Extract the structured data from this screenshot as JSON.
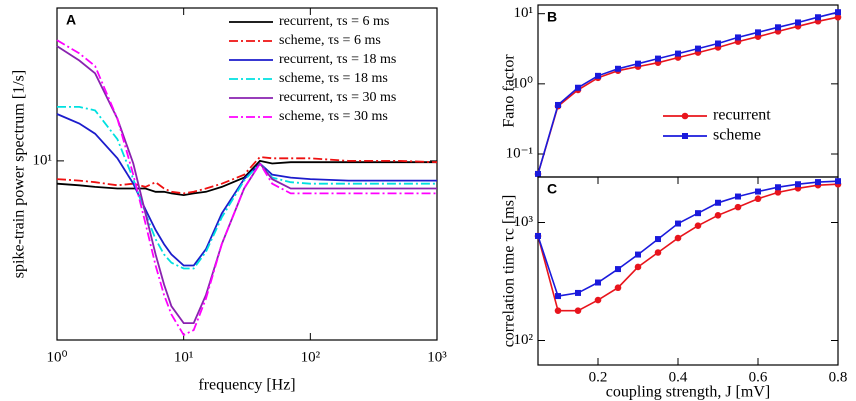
{
  "chart_data": [
    {
      "type": "line",
      "panel": "A",
      "xscale": "log",
      "yscale": "log",
      "xlabel": "frequency [Hz]",
      "ylabel": "spike-train power spectrum [1/s]",
      "x": [
        1,
        1.5,
        2,
        3,
        4,
        5,
        6,
        7,
        8,
        10,
        12,
        15,
        20,
        30,
        40,
        50,
        70,
        100,
        200,
        500,
        1000
      ],
      "xlim": [
        1,
        1000
      ],
      "xticks": [
        {
          "value": 1,
          "label": "10⁰"
        },
        {
          "value": 10,
          "label": "10¹"
        },
        {
          "value": 100,
          "label": "10²"
        },
        {
          "value": 1000,
          "label": "10³"
        }
      ],
      "ylim": [
        2.55,
        32.1
      ],
      "yticks": [
        {
          "value": 10,
          "label": "10¹"
        }
      ],
      "legend": "upper right",
      "series": [
        {
          "name": "recurrent, τs = 6 ms",
          "color": "#000000",
          "dash": false,
          "values": [
            8.4,
            8.3,
            8.2,
            8.1,
            8.1,
            8.1,
            7.9,
            7.9,
            7.8,
            7.7,
            7.8,
            7.9,
            8.2,
            8.8,
            10,
            9.8,
            9.9,
            9.9,
            9.9,
            9.9,
            9.9
          ]
        },
        {
          "name": "scheme, τs = 6 ms",
          "color": "#ee1111",
          "dash": true,
          "values": [
            8.7,
            8.6,
            8.5,
            8.3,
            8.4,
            8.2,
            8.5,
            8.1,
            7.9,
            7.8,
            7.9,
            8.1,
            8.4,
            9.0,
            10.3,
            10.2,
            10.2,
            10.2,
            10,
            10,
            9.9
          ]
        },
        {
          "name": "recurrent, τs = 18 ms",
          "color": "#1c1ccc",
          "dash": false,
          "values": [
            14.3,
            13.3,
            12.3,
            10.2,
            8.4,
            6.9,
            5.9,
            5.3,
            4.9,
            4.5,
            4.5,
            5.1,
            6.7,
            8.7,
            9.8,
            9.0,
            8.8,
            8.7,
            8.6,
            8.6,
            8.6
          ]
        },
        {
          "name": "scheme, τs = 18 ms",
          "color": "#00e0e0",
          "dash": true,
          "values": [
            15.1,
            15.1,
            14.7,
            11.8,
            8.7,
            6.7,
            5.5,
            4.9,
            4.6,
            4.4,
            4.4,
            5.0,
            6.5,
            8.6,
            9.8,
            8.8,
            8.5,
            8.4,
            8.4,
            8.4,
            8.4
          ]
        },
        {
          "name": "recurrent, τs = 30 ms",
          "color": "#8a22b0",
          "dash": false,
          "values": [
            24.0,
            21.5,
            19.5,
            13.8,
            9.8,
            6.7,
            4.9,
            3.9,
            3.3,
            2.9,
            2.9,
            3.6,
            5.3,
            8.1,
            9.8,
            8.7,
            8.1,
            8.1,
            8.1,
            8.1,
            8.1
          ]
        },
        {
          "name": "scheme, τs = 30 ms",
          "color": "#ff00ff",
          "dash": true,
          "values": [
            25.1,
            22.7,
            20.6,
            13.8,
            9.0,
            6.2,
            4.5,
            3.6,
            3.1,
            2.65,
            2.75,
            3.5,
            5.3,
            8.1,
            9.8,
            8.4,
            7.8,
            7.8,
            7.8,
            7.8,
            7.8
          ]
        }
      ]
    },
    {
      "type": "line",
      "panel": "B",
      "xscale": "linear",
      "yscale": "log",
      "ylabel": "Fano factor",
      "x": [
        0.05,
        0.1,
        0.15,
        0.2,
        0.25,
        0.3,
        0.35,
        0.4,
        0.45,
        0.5,
        0.55,
        0.6,
        0.65,
        0.7,
        0.75,
        0.8
      ],
      "xlim": [
        0.05,
        0.8
      ],
      "ylim": [
        0.047,
        13.3
      ],
      "yticks": [
        {
          "value": 0.1,
          "label": "10⁻¹"
        },
        {
          "value": 1,
          "label": "10⁰"
        },
        {
          "value": 10,
          "label": "10¹"
        }
      ],
      "legend": "center right",
      "series": [
        {
          "name": "recurrent",
          "color": "#e8141c",
          "marker": "circle",
          "values": [
            0.052,
            0.48,
            0.82,
            1.22,
            1.54,
            1.76,
            2.0,
            2.37,
            2.79,
            3.3,
            4.0,
            4.7,
            5.6,
            6.6,
            7.8,
            8.9
          ]
        },
        {
          "name": "scheme",
          "color": "#1a1adc",
          "marker": "square",
          "values": [
            0.052,
            0.5,
            0.88,
            1.3,
            1.64,
            1.94,
            2.29,
            2.7,
            3.18,
            3.76,
            4.59,
            5.42,
            6.4,
            7.5,
            8.9,
            10.5
          ]
        }
      ]
    },
    {
      "type": "line",
      "panel": "C",
      "xscale": "linear",
      "yscale": "log",
      "xlabel": "coupling strength, J [mV]",
      "ylabel": "correlation time τc [ms]",
      "x": [
        0.05,
        0.1,
        0.15,
        0.2,
        0.25,
        0.3,
        0.35,
        0.4,
        0.45,
        0.5,
        0.55,
        0.6,
        0.65,
        0.7,
        0.75,
        0.8
      ],
      "xlim": [
        0.05,
        0.8
      ],
      "xticks": [
        0.2,
        0.4,
        0.6,
        0.8
      ],
      "ylim": [
        62,
        2430
      ],
      "yticks": [
        {
          "value": 100,
          "label": "10²"
        },
        {
          "value": 1000,
          "label": "10³"
        }
      ],
      "series": [
        {
          "name": "recurrent",
          "color": "#e8141c",
          "marker": "circle",
          "values": [
            769,
            179,
            179,
            220,
            280,
            420,
            557,
            738,
            940,
            1150,
            1350,
            1590,
            1800,
            1950,
            2070,
            2110
          ]
        },
        {
          "name": "scheme",
          "color": "#1a1adc",
          "marker": "square",
          "values": [
            769,
            238,
            253,
            310,
            403,
            535,
            724,
            980,
            1200,
            1470,
            1660,
            1830,
            1990,
            2110,
            2200,
            2240
          ]
        }
      ]
    }
  ]
}
